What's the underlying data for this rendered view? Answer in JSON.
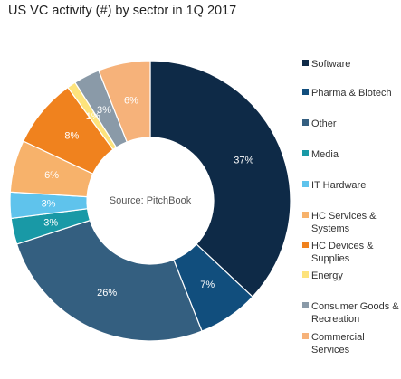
{
  "title": "US VC activity (#) by sector in 1Q 2017",
  "center_text": "Source: PitchBook",
  "chart_data": {
    "type": "pie",
    "donut": true,
    "title": "US VC activity (#) by sector in 1Q 2017",
    "series": [
      {
        "name": "Software",
        "value": 37,
        "label": "37%",
        "color": "#0e2a47",
        "text_color": "#ffffff"
      },
      {
        "name": "Pharma & Biotech",
        "value": 7,
        "label": "7%",
        "color": "#114e7d",
        "text_color": "#ffffff"
      },
      {
        "name": "Other",
        "value": 26,
        "label": "26%",
        "color": "#345f80",
        "text_color": "#ffffff"
      },
      {
        "name": "Media",
        "value": 3,
        "label": "3%",
        "color": "#1999a6",
        "text_color": "#ffffff"
      },
      {
        "name": "IT Hardware",
        "value": 3,
        "label": "3%",
        "color": "#5fc3ec",
        "text_color": "#ffffff"
      },
      {
        "name": "HC Services & Systems",
        "value": 6,
        "label": "6%",
        "color": "#f7b26b",
        "text_color": "#ffffff"
      },
      {
        "name": "HC Devices & Supplies",
        "value": 8,
        "label": "8%",
        "color": "#f0821e",
        "text_color": "#ffffff"
      },
      {
        "name": "Energy",
        "value": 1,
        "label": "1%",
        "color": "#fde37c",
        "text_color": "#ffffff"
      },
      {
        "name": "Consumer Goods & Recreation",
        "value": 3,
        "label": "3%",
        "color": "#8a9aa8",
        "text_color": "#ffffff"
      },
      {
        "name": "Commercial Services",
        "value": 6,
        "label": "6%",
        "color": "#f6b27a",
        "text_color": "#ffffff"
      }
    ],
    "legend": "right"
  }
}
